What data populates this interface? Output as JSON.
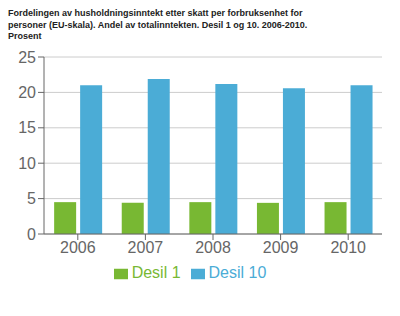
{
  "chart_data": {
    "type": "bar",
    "title": "Fordelingen av husholdningsinntekt etter skatt per forbruksenhet for\npersoner (EU-skala). Andel av totalinntekten. Desil 1 og 10. 2006-2010.\nProsent",
    "categories": [
      "2006",
      "2007",
      "2008",
      "2009",
      "2010"
    ],
    "series": [
      {
        "name": "Desil 1",
        "color": "#78b833",
        "values": [
          4.5,
          4.4,
          4.5,
          4.4,
          4.5
        ]
      },
      {
        "name": "Desil 10",
        "color": "#4bacd6",
        "values": [
          21.0,
          21.9,
          21.2,
          20.6,
          21.0
        ]
      }
    ],
    "ylim": [
      0,
      25
    ],
    "yticks": [
      0,
      5,
      10,
      15,
      20,
      25
    ],
    "grid": true,
    "legend": "bottom"
  }
}
